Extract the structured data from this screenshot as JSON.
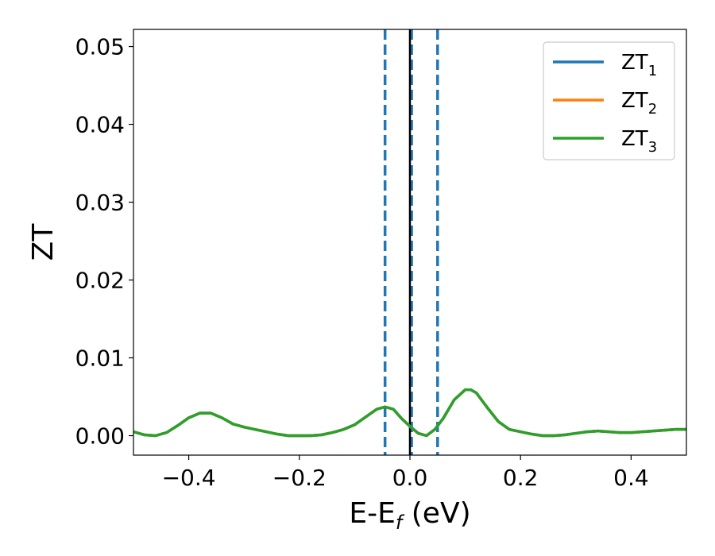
{
  "chart_data": {
    "type": "line",
    "xlabel_main": "E-E",
    "xlabel_sub": "f",
    "xlabel_unit": " (eV)",
    "ylabel": "ZT",
    "xlim": [
      -0.5,
      0.5
    ],
    "ylim": [
      -0.0025,
      0.0522
    ],
    "x_ticks": [
      -0.4,
      -0.2,
      0.0,
      0.2,
      0.4
    ],
    "x_tick_labels": [
      "−0.4",
      "−0.2",
      "0.0",
      "0.2",
      "0.4"
    ],
    "y_ticks": [
      0.0,
      0.01,
      0.02,
      0.03,
      0.04,
      0.05
    ],
    "y_tick_labels": [
      "0.00",
      "0.01",
      "0.02",
      "0.03",
      "0.04",
      "0.05"
    ],
    "grid": false,
    "legend_position": "top-right",
    "vlines": [
      {
        "x": -0.045,
        "color": "#1f77b4",
        "style": "dashed"
      },
      {
        "x": 0.003,
        "color": "#1f77b4",
        "style": "dashed"
      },
      {
        "x": 0.05,
        "color": "#1f77b4",
        "style": "dashed"
      },
      {
        "x": 0.0,
        "color": "#000000",
        "style": "solid"
      }
    ],
    "x": [
      -0.5,
      -0.48,
      -0.46,
      -0.44,
      -0.42,
      -0.4,
      -0.38,
      -0.36,
      -0.34,
      -0.32,
      -0.3,
      -0.28,
      -0.26,
      -0.24,
      -0.22,
      -0.2,
      -0.18,
      -0.16,
      -0.14,
      -0.12,
      -0.1,
      -0.08,
      -0.06,
      -0.045,
      -0.03,
      -0.015,
      0.0,
      0.015,
      0.03,
      0.045,
      0.06,
      0.08,
      0.1,
      0.11,
      0.12,
      0.14,
      0.16,
      0.18,
      0.2,
      0.22,
      0.24,
      0.26,
      0.28,
      0.3,
      0.32,
      0.34,
      0.36,
      0.38,
      0.4,
      0.42,
      0.44,
      0.46,
      0.48,
      0.5
    ],
    "series": [
      {
        "name_main": "ZT",
        "name_sub": "1",
        "color": "#1f77b4",
        "values": [
          0.0005,
          0.0001,
          0.0,
          0.0004,
          0.0013,
          0.0023,
          0.0029,
          0.0029,
          0.0023,
          0.0015,
          0.0011,
          0.0008,
          0.0005,
          0.0002,
          0.0,
          0.0,
          0.0,
          0.0001,
          0.0004,
          0.0008,
          0.0014,
          0.0024,
          0.0034,
          0.0037,
          0.0034,
          0.0022,
          0.0012,
          0.0003,
          0.0,
          0.0008,
          0.0022,
          0.0046,
          0.0059,
          0.0059,
          0.0055,
          0.0036,
          0.0018,
          0.0008,
          0.0005,
          0.0002,
          0.0,
          0.0,
          0.0001,
          0.0003,
          0.0005,
          0.0006,
          0.0005,
          0.0004,
          0.0004,
          0.0005,
          0.0006,
          0.0007,
          0.0008,
          0.0008
        ]
      },
      {
        "name_main": "ZT",
        "name_sub": "2",
        "color": "#ff7f0e",
        "values": [
          0.0005,
          0.0001,
          0.0,
          0.0004,
          0.0013,
          0.0023,
          0.0029,
          0.0029,
          0.0023,
          0.0015,
          0.0011,
          0.0008,
          0.0005,
          0.0002,
          0.0,
          0.0,
          0.0,
          0.0001,
          0.0004,
          0.0008,
          0.0014,
          0.0024,
          0.0034,
          0.0037,
          0.0034,
          0.0022,
          0.0012,
          0.0003,
          0.0,
          0.0008,
          0.0022,
          0.0046,
          0.0059,
          0.0059,
          0.0055,
          0.0036,
          0.0018,
          0.0008,
          0.0005,
          0.0002,
          0.0,
          0.0,
          0.0001,
          0.0003,
          0.0005,
          0.0006,
          0.0005,
          0.0004,
          0.0004,
          0.0005,
          0.0006,
          0.0007,
          0.0008,
          0.0008
        ]
      },
      {
        "name_main": "ZT",
        "name_sub": "3",
        "color": "#2ca02c",
        "values": [
          0.0005,
          0.0001,
          0.0,
          0.0004,
          0.0013,
          0.0023,
          0.0029,
          0.0029,
          0.0023,
          0.0015,
          0.0011,
          0.0008,
          0.0005,
          0.0002,
          0.0,
          0.0,
          0.0,
          0.0001,
          0.0004,
          0.0008,
          0.0014,
          0.0024,
          0.0034,
          0.0037,
          0.0034,
          0.0022,
          0.0012,
          0.0003,
          0.0,
          0.0008,
          0.0022,
          0.0046,
          0.0059,
          0.0059,
          0.0055,
          0.0036,
          0.0018,
          0.0008,
          0.0005,
          0.0002,
          0.0,
          0.0,
          0.0001,
          0.0003,
          0.0005,
          0.0006,
          0.0005,
          0.0004,
          0.0004,
          0.0005,
          0.0006,
          0.0007,
          0.0008,
          0.0008
        ]
      }
    ]
  }
}
